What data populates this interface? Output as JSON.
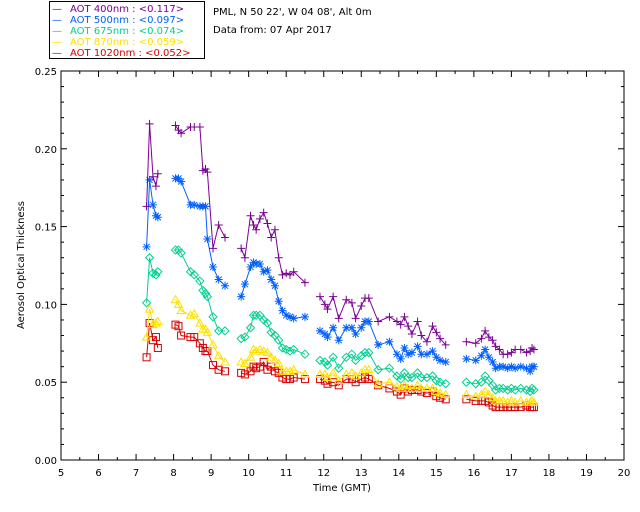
{
  "info": {
    "station": "PML, N 50 22', W 04 08', Alt 0m",
    "date": "Data from: 07 Apr 2017"
  },
  "chart_data": {
    "type": "line",
    "title": "",
    "xlabel": "Time (GMT)",
    "ylabel": "Aerosol Optical Thickness",
    "xlim": [
      5,
      20
    ],
    "ylim": [
      0.0,
      0.25
    ],
    "xticks": [
      "5",
      "6",
      "7",
      "8",
      "9",
      "10",
      "11",
      "12",
      "13",
      "14",
      "15",
      "16",
      "17",
      "18",
      "19",
      "20"
    ],
    "yticks": [
      "0.00",
      "0.05",
      "0.10",
      "0.15",
      "0.20",
      "0.25"
    ],
    "x": [
      7.28,
      7.36,
      7.45,
      7.53,
      7.58,
      8.05,
      8.13,
      8.2,
      8.45,
      8.55,
      8.7,
      8.78,
      8.85,
      8.9,
      9.05,
      9.2,
      9.37,
      9.8,
      9.9,
      10.05,
      10.13,
      10.2,
      10.3,
      10.4,
      10.5,
      10.6,
      10.7,
      10.8,
      10.9,
      11.0,
      11.1,
      11.2,
      11.5,
      11.9,
      12.03,
      12.1,
      12.25,
      12.4,
      12.6,
      12.75,
      12.85,
      13.0,
      13.1,
      13.2,
      13.45,
      13.75,
      13.95,
      14.05,
      14.15,
      14.25,
      14.35,
      14.5,
      14.6,
      14.75,
      14.9,
      15.0,
      15.1,
      15.25,
      15.8,
      16.05,
      16.2,
      16.3,
      16.4,
      16.5,
      16.58,
      16.68,
      16.78,
      16.9,
      17.0,
      17.1,
      17.25,
      17.4,
      17.5,
      17.55,
      17.6
    ],
    "series": [
      {
        "name": "AOT  400nm",
        "legend": "AOT  400nm : <0.117>",
        "color": "#7b0093",
        "marker": "plus",
        "values": [
          0.163,
          0.216,
          0.182,
          0.176,
          0.184,
          0.215,
          0.212,
          0.21,
          0.214,
          0.214,
          0.214,
          0.186,
          0.187,
          0.185,
          0.136,
          0.151,
          0.143,
          0.136,
          0.13,
          0.157,
          0.151,
          0.148,
          0.155,
          0.159,
          0.152,
          0.143,
          0.148,
          0.13,
          0.119,
          0.12,
          0.119,
          0.121,
          0.114,
          0.105,
          0.1,
          0.097,
          0.105,
          0.091,
          0.103,
          0.101,
          0.091,
          0.099,
          0.104,
          0.104,
          0.089,
          0.092,
          0.089,
          0.087,
          0.092,
          0.086,
          0.081,
          0.089,
          0.08,
          0.076,
          0.086,
          0.082,
          0.078,
          0.074,
          0.076,
          0.075,
          0.078,
          0.083,
          0.079,
          0.077,
          0.073,
          0.071,
          0.068,
          0.068,
          0.069,
          0.071,
          0.071,
          0.069,
          0.07,
          0.072,
          0.071
        ]
      },
      {
        "name": "AOT  500nm",
        "legend": "AOT  500nm : <0.097>",
        "color": "#0060ff",
        "marker": "asterisk",
        "values": [
          0.137,
          0.18,
          0.164,
          0.157,
          0.156,
          0.181,
          0.181,
          0.179,
          0.164,
          0.164,
          0.163,
          0.163,
          0.163,
          0.142,
          0.124,
          0.116,
          0.112,
          0.105,
          0.113,
          0.124,
          0.127,
          0.126,
          0.126,
          0.121,
          0.122,
          0.116,
          0.112,
          0.102,
          0.096,
          0.093,
          0.092,
          0.091,
          0.092,
          0.083,
          0.081,
          0.079,
          0.085,
          0.077,
          0.085,
          0.085,
          0.081,
          0.085,
          0.089,
          0.089,
          0.074,
          0.076,
          0.068,
          0.065,
          0.072,
          0.068,
          0.069,
          0.073,
          0.068,
          0.068,
          0.07,
          0.066,
          0.064,
          0.063,
          0.065,
          0.064,
          0.067,
          0.071,
          0.066,
          0.063,
          0.059,
          0.06,
          0.06,
          0.059,
          0.06,
          0.059,
          0.06,
          0.059,
          0.057,
          0.06,
          0.06
        ]
      },
      {
        "name": "AOT  675nm",
        "legend": "AOT  675nm : <0.074>",
        "color": "#00d090",
        "marker": "diamond",
        "values": [
          0.101,
          0.13,
          0.12,
          0.119,
          0.121,
          0.135,
          0.135,
          0.133,
          0.121,
          0.119,
          0.115,
          0.109,
          0.107,
          0.105,
          0.092,
          0.083,
          0.083,
          0.078,
          0.079,
          0.085,
          0.093,
          0.093,
          0.093,
          0.09,
          0.088,
          0.082,
          0.08,
          0.077,
          0.072,
          0.071,
          0.07,
          0.071,
          0.068,
          0.064,
          0.063,
          0.061,
          0.066,
          0.059,
          0.066,
          0.068,
          0.064,
          0.067,
          0.069,
          0.069,
          0.058,
          0.059,
          0.054,
          0.052,
          0.056,
          0.053,
          0.053,
          0.056,
          0.053,
          0.053,
          0.054,
          0.051,
          0.05,
          0.049,
          0.05,
          0.049,
          0.05,
          0.054,
          0.051,
          0.048,
          0.045,
          0.046,
          0.046,
          0.045,
          0.046,
          0.045,
          0.046,
          0.045,
          0.044,
          0.046,
          0.045
        ]
      },
      {
        "name": "AOT  870nm",
        "legend": "AOT  870nm : <0.059>",
        "color": "#ffe000",
        "marker": "triangle",
        "values": [
          0.079,
          0.097,
          0.087,
          0.088,
          0.089,
          0.103,
          0.1,
          0.096,
          0.093,
          0.094,
          0.088,
          0.084,
          0.084,
          0.082,
          0.074,
          0.067,
          0.063,
          0.063,
          0.062,
          0.066,
          0.071,
          0.07,
          0.071,
          0.07,
          0.069,
          0.066,
          0.064,
          0.062,
          0.057,
          0.057,
          0.057,
          0.058,
          0.055,
          0.055,
          0.055,
          0.053,
          0.056,
          0.051,
          0.055,
          0.056,
          0.054,
          0.056,
          0.058,
          0.058,
          0.049,
          0.05,
          0.047,
          0.046,
          0.048,
          0.046,
          0.046,
          0.048,
          0.046,
          0.046,
          0.046,
          0.044,
          0.043,
          0.042,
          0.042,
          0.041,
          0.042,
          0.044,
          0.042,
          0.04,
          0.038,
          0.038,
          0.038,
          0.037,
          0.038,
          0.037,
          0.038,
          0.037,
          0.037,
          0.038,
          0.037
        ]
      },
      {
        "name": "AOT 1020nm",
        "legend": "AOT 1020nm : <0.052>",
        "color": "#d80000",
        "marker": "square",
        "values": [
          0.066,
          0.088,
          0.077,
          0.079,
          0.072,
          0.087,
          0.086,
          0.08,
          0.079,
          0.079,
          0.075,
          0.072,
          0.07,
          0.07,
          0.061,
          0.058,
          0.057,
          0.056,
          0.055,
          0.057,
          0.06,
          0.059,
          0.06,
          0.063,
          0.058,
          0.06,
          0.057,
          0.056,
          0.053,
          0.052,
          0.052,
          0.053,
          0.052,
          0.052,
          0.051,
          0.049,
          0.05,
          0.048,
          0.052,
          0.052,
          0.05,
          0.052,
          0.053,
          0.052,
          0.048,
          0.046,
          0.044,
          0.042,
          0.046,
          0.044,
          0.045,
          0.045,
          0.044,
          0.043,
          0.044,
          0.041,
          0.04,
          0.039,
          0.039,
          0.038,
          0.038,
          0.038,
          0.037,
          0.035,
          0.034,
          0.034,
          0.034,
          0.034,
          0.034,
          0.034,
          0.034,
          0.035,
          0.034,
          0.034,
          0.034
        ]
      }
    ]
  }
}
